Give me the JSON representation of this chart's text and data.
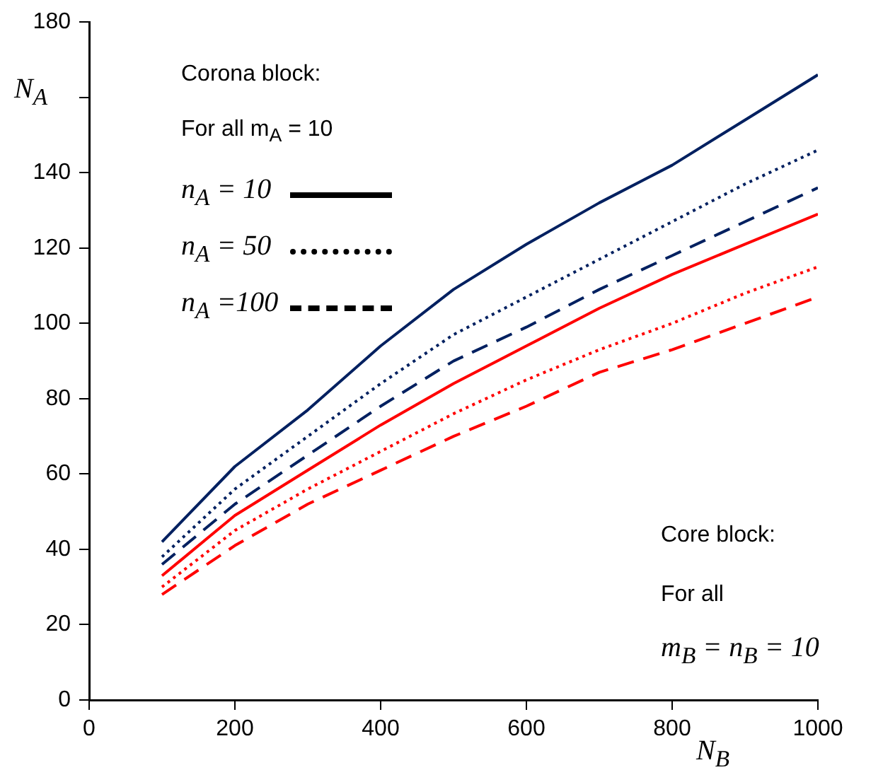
{
  "chart_data": {
    "type": "line",
    "xlabel": "N$_{B}$",
    "ylabel": "N$_{A}$",
    "x": [
      100,
      200,
      300,
      400,
      500,
      600,
      700,
      800,
      900,
      1000
    ],
    "series": [
      {
        "color": "#002060",
        "line_style": "solid",
        "values": [
          42,
          62,
          77,
          94,
          109,
          121,
          132,
          142,
          154,
          166
        ]
      },
      {
        "color": "#002060",
        "line_style": "dotted",
        "values": [
          38,
          56,
          70,
          84,
          97,
          107,
          117,
          127,
          137,
          146
        ]
      },
      {
        "color": "#002060",
        "line_style": "dashed",
        "values": [
          36,
          52,
          65,
          78,
          90,
          99,
          109,
          118,
          127,
          136
        ]
      },
      {
        "color": "#ff0000",
        "line_style": "solid",
        "values": [
          33,
          49,
          61,
          73,
          84,
          94,
          104,
          113,
          121,
          129
        ]
      },
      {
        "color": "#ff0000",
        "line_style": "dotted",
        "values": [
          30,
          45,
          56,
          66,
          76,
          85,
          93,
          100,
          108,
          115
        ]
      },
      {
        "color": "#ff0000",
        "line_style": "dashed",
        "values": [
          28,
          41,
          52,
          61,
          70,
          78,
          87,
          93,
          100,
          107
        ]
      }
    ],
    "xlim": [
      0,
      1000
    ],
    "xticks": [
      0,
      200,
      400,
      600,
      800,
      1000
    ],
    "ylim": [
      0,
      180
    ],
    "yticks": [
      0,
      20,
      40,
      60,
      80,
      100,
      120,
      140,
      {
        "value": 160,
        "label": null
      },
      180
    ],
    "grid": false,
    "legend": false,
    "marker": "none",
    "annotations": [
      "Corona block:",
      "For all m$_{A}$ = 10",
      "n$_{A}$ = 10",
      "n$_{A}$ = 50",
      "n$_{A}$ =100",
      "Core block:",
      "For all",
      "m$_{B}$ = n$_{B}$ = 10"
    ]
  }
}
